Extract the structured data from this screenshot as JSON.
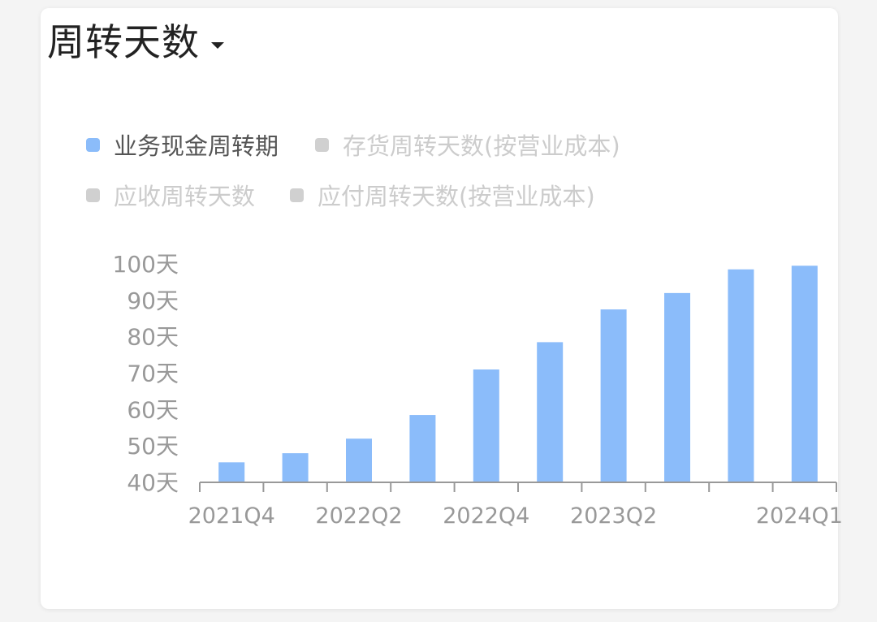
{
  "header": {
    "title": "周转天数"
  },
  "legend": [
    {
      "label": "业务现金周转期",
      "active": true
    },
    {
      "label": "存货周转天数(按营业成本)",
      "active": false
    },
    {
      "label": "应收周转天数",
      "active": false
    },
    {
      "label": "应付周转天数(按营业成本)",
      "active": false
    }
  ],
  "colors": {
    "bar": "#8bbcfa",
    "inactive_swatch": "#d0d0d0",
    "axis": "#999999",
    "tick_text": "#999999"
  },
  "chart_data": {
    "type": "bar",
    "categories": [
      "2021Q4",
      "2022Q1",
      "2022Q2",
      "2022Q3",
      "2022Q4",
      "2023Q1",
      "2023Q2",
      "2023Q3",
      "2023Q4",
      "2024Q1"
    ],
    "x_tick_labels": [
      "2021Q4",
      "2022Q2",
      "2022Q4",
      "2023Q2",
      "2024Q1"
    ],
    "series": [
      {
        "name": "业务现金周转期",
        "values": [
          45.5,
          48,
          52,
          58.5,
          71,
          78.5,
          87.5,
          92,
          98.5,
          99.5
        ]
      }
    ],
    "y_ticks": [
      "40天",
      "50天",
      "60天",
      "70天",
      "80天",
      "90天",
      "100天"
    ],
    "ylim": [
      40,
      100
    ],
    "grid": false,
    "legend_position": "top-left"
  }
}
